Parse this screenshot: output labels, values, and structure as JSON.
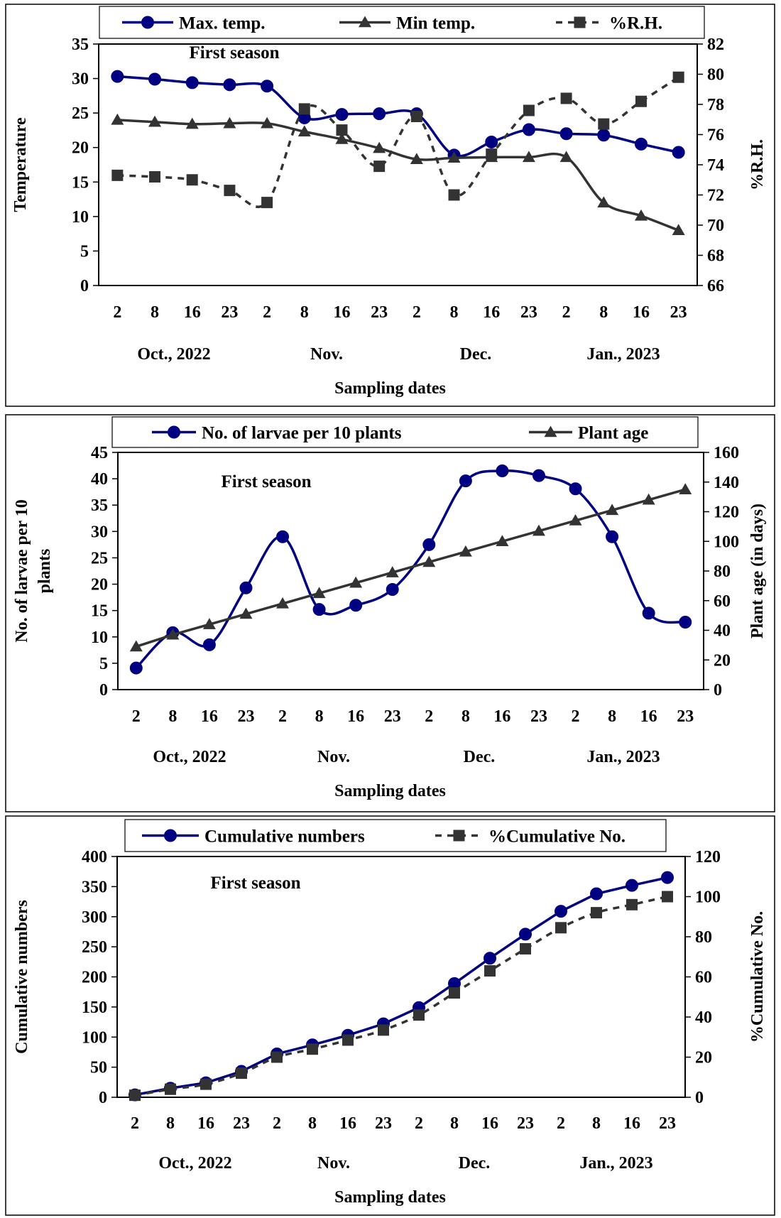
{
  "chart_data": [
    {
      "type": "line",
      "annotation": "First season",
      "xlabel": "Sampling dates",
      "ylabel": "Temperature",
      "ylabel_right": "%R.H.",
      "ylim": [
        0,
        35
      ],
      "y_ticks": [
        0,
        5,
        10,
        15,
        20,
        25,
        30,
        35
      ],
      "ylim_right": [
        66,
        82
      ],
      "y_ticks_right": [
        66,
        68,
        70,
        72,
        74,
        76,
        78,
        80,
        82
      ],
      "categories": [
        "2",
        "8",
        "16",
        "23",
        "2",
        "8",
        "16",
        "23",
        "2",
        "8",
        "16",
        "23",
        "2",
        "8",
        "16",
        "23"
      ],
      "months": [
        "Oct., 2022",
        "Nov.",
        "Dec.",
        "Jan., 2023"
      ],
      "legend_position": "top",
      "series": [
        {
          "name": "Max. temp.",
          "axis": "left",
          "marker": "circle",
          "style": "solid",
          "color": "#000080",
          "values": [
            30.3,
            29.9,
            29.4,
            29.1,
            28.9,
            24.3,
            24.8,
            24.9,
            24.9,
            18.9,
            20.8,
            22.6,
            22.0,
            21.8,
            20.5,
            19.3
          ]
        },
        {
          "name": "Min temp.",
          "axis": "left",
          "marker": "triangle",
          "style": "solid",
          "color": "#333333",
          "values": [
            24.0,
            23.7,
            23.4,
            23.5,
            23.5,
            22.3,
            21.2,
            19.9,
            18.3,
            18.5,
            18.6,
            18.6,
            18.6,
            12.0,
            10.1,
            8.0
          ]
        },
        {
          "name": "%R.H.",
          "axis": "right",
          "marker": "square",
          "style": "dashed",
          "color": "#333333",
          "values": [
            73.3,
            73.2,
            73.0,
            72.3,
            71.5,
            77.7,
            76.3,
            73.9,
            77.2,
            72.0,
            74.7,
            77.6,
            78.4,
            76.7,
            78.2,
            79.8
          ]
        }
      ]
    },
    {
      "type": "line",
      "annotation": "First season",
      "xlabel": "Sampling dates",
      "ylabel": "No. of larvae per 10 plants",
      "ylabel_right": "Plant age (in days)",
      "ylim": [
        0,
        45
      ],
      "y_ticks": [
        0,
        5,
        10,
        15,
        20,
        25,
        30,
        35,
        40,
        45
      ],
      "ylim_right": [
        0,
        160
      ],
      "y_ticks_right": [
        0,
        20,
        40,
        60,
        80,
        100,
        120,
        140,
        160
      ],
      "categories": [
        "2",
        "8",
        "16",
        "23",
        "2",
        "8",
        "16",
        "23",
        "2",
        "8",
        "16",
        "23",
        "2",
        "8",
        "16",
        "23"
      ],
      "months": [
        "Oct., 2022",
        "Nov.",
        "Dec.",
        "Jan., 2023"
      ],
      "legend_position": "top",
      "series": [
        {
          "name": "No. of larvae per 10 plants",
          "axis": "left",
          "marker": "circle",
          "style": "smooth",
          "color": "#000080",
          "values": [
            4.1,
            10.8,
            8.5,
            19.3,
            29.0,
            15.2,
            16.0,
            19.0,
            27.5,
            39.6,
            41.5,
            40.6,
            38.1,
            29.0,
            14.5,
            12.8
          ]
        },
        {
          "name": "Plant age",
          "axis": "right",
          "marker": "triangle",
          "style": "solid",
          "color": "#333333",
          "values": [
            29,
            37,
            44,
            51,
            58,
            65,
            72,
            79,
            86,
            93,
            100,
            107,
            114,
            121,
            128,
            135
          ]
        }
      ]
    },
    {
      "type": "line",
      "annotation": "First season",
      "xlabel": "Sampling dates",
      "ylabel": "Cumulative numbers",
      "ylabel_right": "%Cumulative No.",
      "ylim": [
        0,
        400
      ],
      "y_ticks": [
        0,
        50,
        100,
        150,
        200,
        250,
        300,
        350,
        400
      ],
      "ylim_right": [
        0,
        120
      ],
      "y_ticks_right": [
        0,
        20,
        40,
        60,
        80,
        100,
        120
      ],
      "categories": [
        "2",
        "8",
        "16",
        "23",
        "2",
        "8",
        "16",
        "23",
        "2",
        "8",
        "16",
        "23",
        "2",
        "8",
        "16",
        "23"
      ],
      "months": [
        "Oct., 2022",
        "Nov.",
        "Dec.",
        "Jan., 2023"
      ],
      "legend_position": "top",
      "series": [
        {
          "name": "Cumulative numbers",
          "axis": "left",
          "marker": "circle",
          "style": "solid",
          "color": "#000080",
          "values": [
            4,
            15,
            24,
            43,
            72,
            87,
            103,
            122,
            149,
            189,
            231,
            271,
            309,
            338,
            352,
            365
          ]
        },
        {
          "name": "%Cumulative No.",
          "axis": "right",
          "marker": "square",
          "style": "dashed",
          "color": "#333333",
          "values": [
            1,
            4,
            6.5,
            12,
            20,
            24,
            28.5,
            33.5,
            41,
            52,
            63,
            74,
            84.5,
            92,
            96,
            100
          ]
        }
      ]
    }
  ]
}
